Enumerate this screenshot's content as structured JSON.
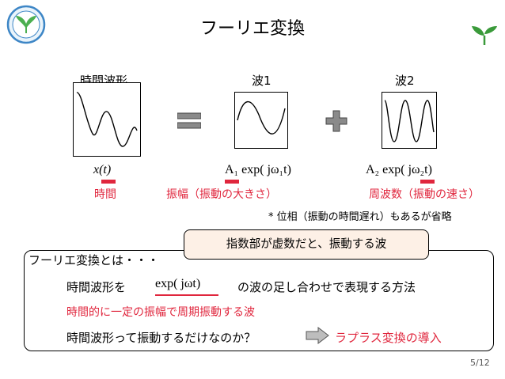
{
  "slide": {
    "title": "フーリエ変換",
    "page_number": "5/12"
  },
  "headers": {
    "time_waveform": "時間波形",
    "wave1": "波1",
    "wave2": "波2"
  },
  "formulas": {
    "xt": "x(t)",
    "wave1": "A₁ exp( jω₁t)",
    "wave2": "A₂ exp( jω₂t)",
    "exp_jwt": "exp( jωt)"
  },
  "annotations": {
    "time": "時間",
    "amplitude": "振幅（振動の大きさ）",
    "frequency": "周波数（振動の速さ）",
    "phase_note": "* 位相（振動の時間遅れ）もあるが省略"
  },
  "callout": {
    "text": "指数部が虚数だと、振動する波"
  },
  "definition": {
    "heading": "フーリエ変換とは・・・",
    "line1_prefix": "時間波形を",
    "line1_suffix": "の波の足し合わせで表現する方法",
    "line2": "時間的に一定の振幅で周期振動する波",
    "line3": "時間波形って振動するだけなのか？",
    "link": "ラプラス変換の導入"
  },
  "colors": {
    "accent_red": "#e0263d",
    "logo_blue": "#3d86c6",
    "leaf_green": "#3a9a3a",
    "callout_fill": "#fdf0e6",
    "symbol_gray": "#8a8a8a"
  }
}
